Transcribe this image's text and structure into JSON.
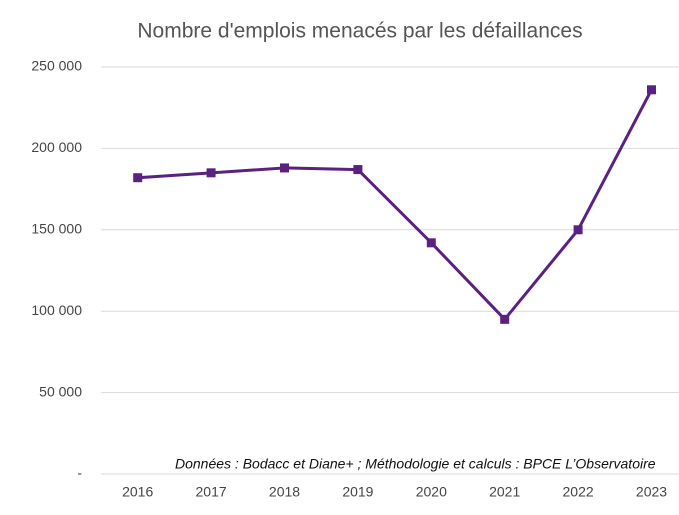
{
  "chart_data": {
    "type": "line",
    "title": "Nombre d'emplois menacés par les défaillances",
    "note": "Données : Bodacc et Diane+ ; Méthodologie et calculs : BPCE L’Observatoire",
    "categories": [
      "2016",
      "2017",
      "2018",
      "2019",
      "2020",
      "2021",
      "2022",
      "2023"
    ],
    "series": [
      {
        "name": "Nombre d'emplois menacés",
        "color": "#5b2180",
        "values": [
          182000,
          185000,
          188000,
          187000,
          142000,
          95000,
          150000,
          236000
        ]
      }
    ],
    "ylim": [
      0,
      250000
    ],
    "yticks": [
      {
        "value": 0,
        "label": "-"
      },
      {
        "value": 50000,
        "label": "50 000"
      },
      {
        "value": 100000,
        "label": "100 000"
      },
      {
        "value": 150000,
        "label": "150 000"
      },
      {
        "value": 200000,
        "label": "200 000"
      },
      {
        "value": 250000,
        "label": "250 000"
      }
    ],
    "grid": true
  }
}
